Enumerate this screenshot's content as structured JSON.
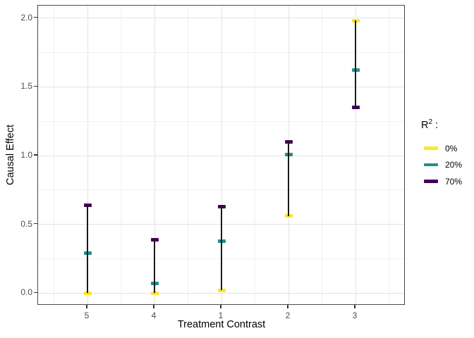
{
  "chart_data": {
    "type": "scatter",
    "title": "",
    "xlabel": "Treatment Contrast",
    "ylabel": "Causal Effect",
    "categories": [
      "5",
      "4",
      "1",
      "2",
      "3"
    ],
    "y_ticks": [
      0.0,
      0.5,
      1.0,
      1.5,
      2.0
    ],
    "ylim": [
      -0.09,
      2.09
    ],
    "grid": true,
    "range_lines": true,
    "legend": {
      "position": "right",
      "title_base": "R",
      "title_sup": "2",
      "title_suffix": ":",
      "entries": [
        {
          "label": "0%",
          "color": "#FDE725"
        },
        {
          "label": "20%",
          "color": "#21908C"
        },
        {
          "label": "70%",
          "color": "#440154"
        }
      ]
    },
    "series": [
      {
        "name": "0%",
        "color": "#FDE725",
        "values": [
          0.0,
          0.0,
          0.02,
          0.56,
          1.98
        ]
      },
      {
        "name": "20%",
        "color": "#21908C",
        "values": [
          0.29,
          0.07,
          0.38,
          1.01,
          1.62
        ]
      },
      {
        "name": "70%",
        "color": "#440154",
        "values": [
          0.64,
          0.39,
          0.63,
          1.1,
          1.35
        ]
      }
    ],
    "colors": {
      "panel_border": "#4a4a4a",
      "grid_major": "#e3e3e3",
      "grid_minor": "#f1f1f1",
      "range_line": "#1a1a1a",
      "axis_text": "#4d4d4d",
      "background": "#ffffff"
    }
  }
}
